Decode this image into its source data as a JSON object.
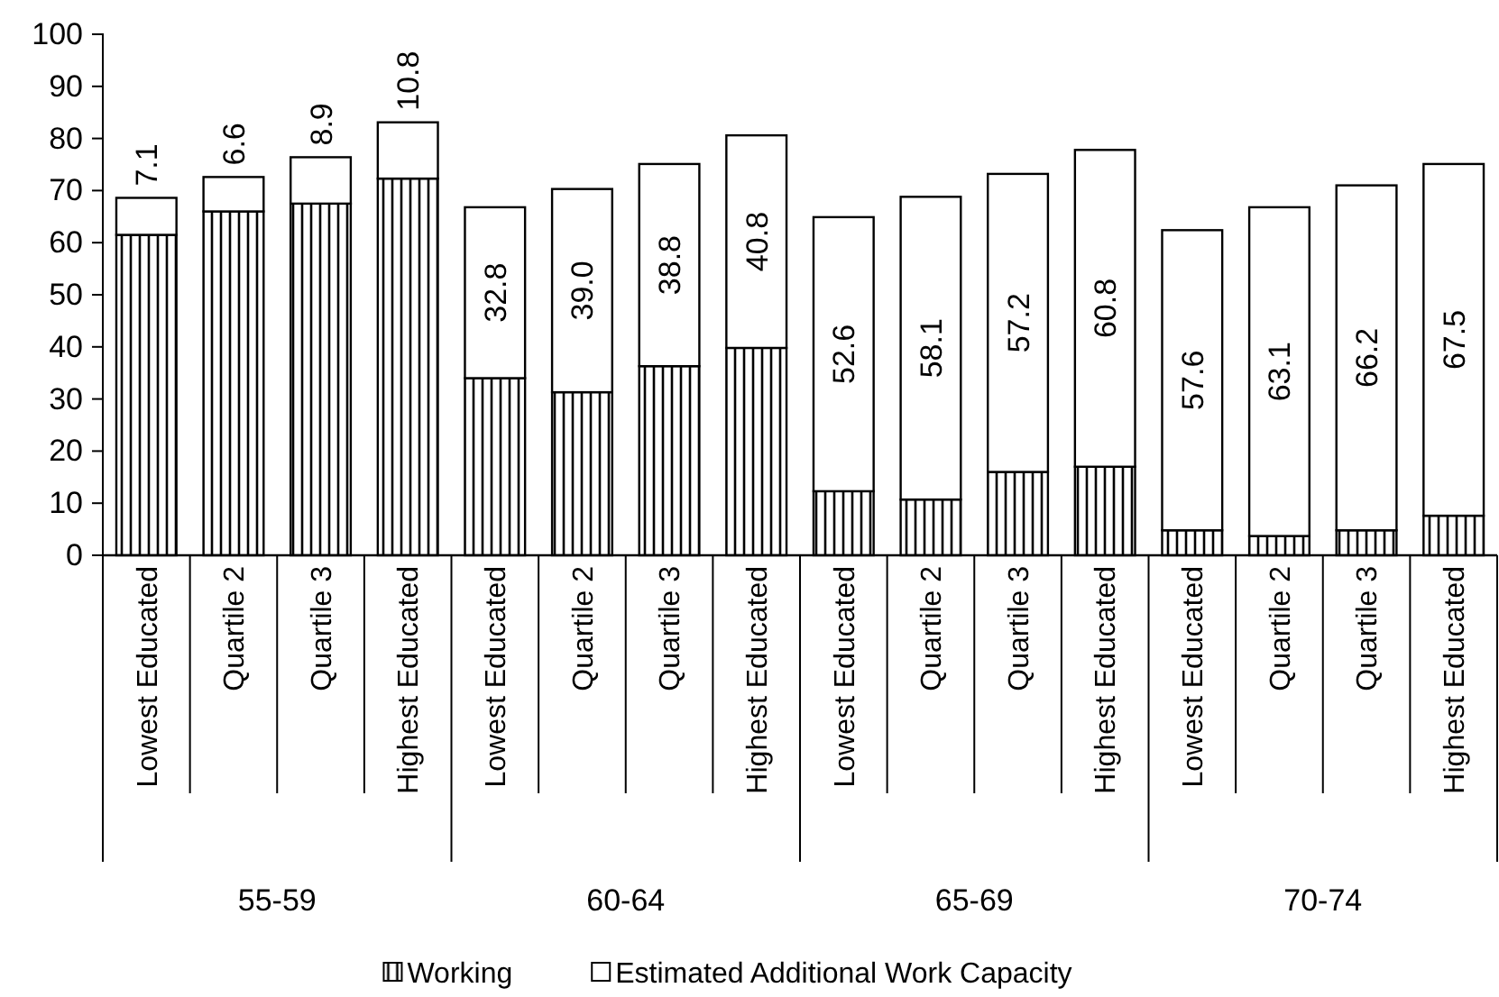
{
  "chart_data": {
    "type": "bar",
    "stacked": true,
    "categories": [
      "Lowest Educated",
      "Quartile 2",
      "Quartile 3",
      "Highest Educated",
      "Lowest Educated",
      "Quartile 2",
      "Quartile 3",
      "Highest Educated",
      "Lowest Educated",
      "Quartile 2",
      "Quartile 3",
      "Highest Educated",
      "Lowest Educated",
      "Quartile 2",
      "Quartile 3",
      "Highest Educated"
    ],
    "series": [
      {
        "name": "Working",
        "color": "#000000",
        "values": [
          61.5,
          66.0,
          67.5,
          72.3,
          34.0,
          31.3,
          36.3,
          39.8,
          12.3,
          10.7,
          16.0,
          17.0,
          4.8,
          3.7,
          4.8,
          7.6
        ]
      },
      {
        "name": "Estimated Additional Work Capacity",
        "color": "#ffffff",
        "values": [
          7.1,
          6.6,
          8.9,
          10.8,
          32.8,
          39.0,
          38.8,
          40.8,
          52.6,
          58.1,
          57.2,
          60.8,
          57.6,
          63.1,
          66.2,
          67.5
        ],
        "value_labels": [
          "7.1",
          "6.6",
          "8.9",
          "10.8",
          "32.8",
          "39.0",
          "38.8",
          "40.8",
          "52.6",
          "58.1",
          "57.2",
          "60.8",
          "57.6",
          "63.1",
          "66.2",
          "67.5"
        ]
      }
    ],
    "annotations": [
      "55-59",
      "60-64",
      "65-69",
      "70-74"
    ],
    "ylim": [
      0,
      100
    ],
    "yticks": [
      0,
      10,
      20,
      30,
      40,
      50,
      60,
      70,
      80,
      90,
      100
    ],
    "grid": false,
    "legend": "bottom"
  }
}
